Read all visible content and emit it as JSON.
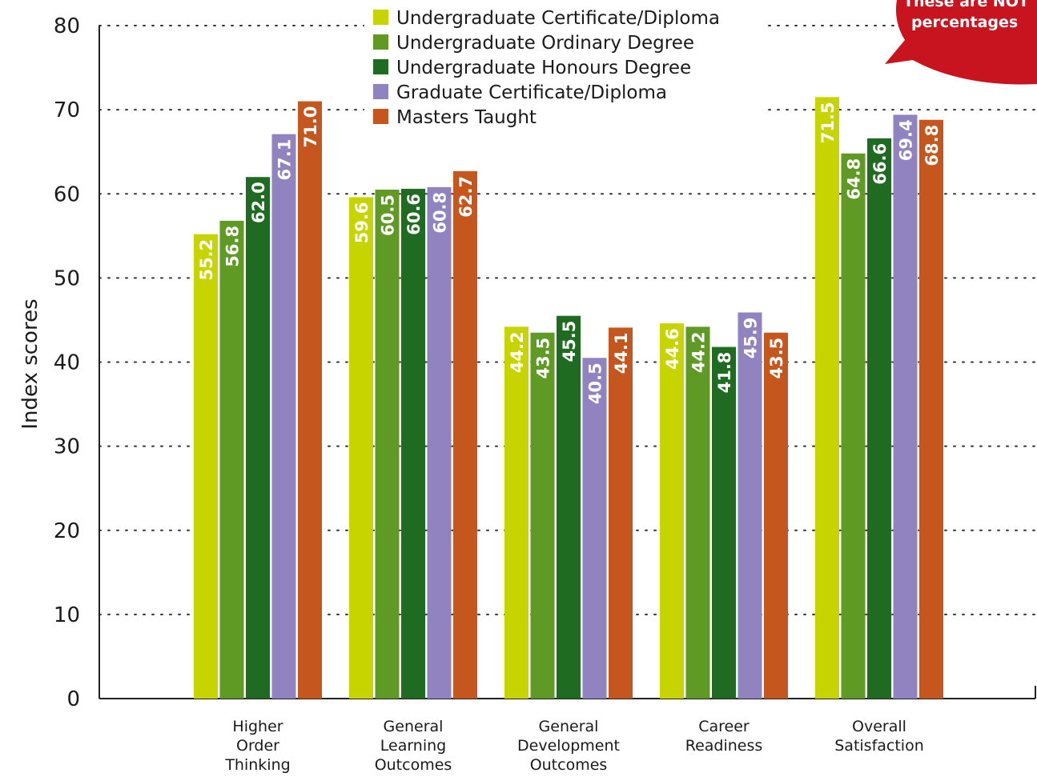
{
  "chart_data": {
    "type": "bar",
    "title": "",
    "xlabel": "",
    "ylabel": "Index scores",
    "ylim": [
      0,
      80
    ],
    "yticks": [
      0,
      10,
      20,
      30,
      40,
      50,
      60,
      70,
      80
    ],
    "grid": "dotted horizontal",
    "legend_position": "top-center",
    "categories": [
      [
        "Higher",
        "Order",
        "Thinking"
      ],
      [
        "General",
        "Learning",
        "Outcomes"
      ],
      [
        "General",
        "Development",
        "Outcomes"
      ],
      [
        "Career",
        "Readiness"
      ],
      [
        "Overall",
        "Satisfaction"
      ]
    ],
    "series": [
      {
        "name": "Undergraduate Certificate/Diploma",
        "color": "#c8d400",
        "values": [
          55.2,
          59.6,
          44.2,
          44.6,
          71.5
        ]
      },
      {
        "name": "Undergraduate Ordinary Degree",
        "color": "#5e9a24",
        "values": [
          56.8,
          60.5,
          43.5,
          44.2,
          64.8
        ]
      },
      {
        "name": "Undergraduate Honours Degree",
        "color": "#1f6b21",
        "values": [
          62.0,
          60.6,
          45.5,
          41.8,
          66.6
        ]
      },
      {
        "name": "Graduate Certificate/Diploma",
        "color": "#9183bf",
        "values": [
          67.1,
          60.8,
          40.5,
          45.9,
          69.4
        ]
      },
      {
        "name": "Masters Taught",
        "color": "#c4561e",
        "values": [
          71.0,
          62.7,
          44.1,
          43.5,
          68.8
        ]
      }
    ],
    "value_labels": [
      [
        "55.2",
        "59.6",
        "44.2",
        "44.6",
        "71.5"
      ],
      [
        "56.8",
        "60.5",
        "43.5",
        "44.2",
        "64.8"
      ],
      [
        "62.0",
        "60.6",
        "45.5",
        "41.8",
        "66.6"
      ],
      [
        "67.1",
        "60.8",
        "40.5",
        "45.9",
        "69.4"
      ],
      [
        "71.0",
        "62.7",
        "44.1",
        "43.5",
        "68.8"
      ]
    ]
  },
  "callout": {
    "lines": [
      "These are NOT",
      "percentages"
    ],
    "color": "#c8141f"
  }
}
